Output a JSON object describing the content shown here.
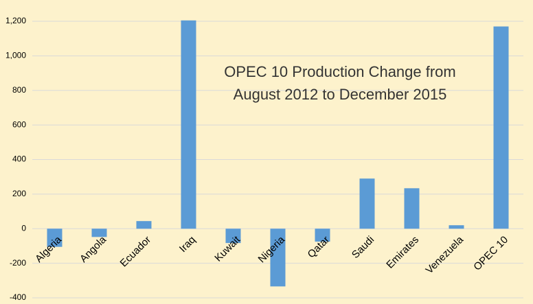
{
  "chart_data": {
    "type": "bar",
    "title": "OPEC 10 Production Change from August 2012 to December 2015",
    "categories": [
      "Algeria",
      "Angola",
      "Ecuador",
      "Iraq",
      "Kuwait",
      "Nigeria",
      "Qatar",
      "Saudi",
      "Emirates",
      "Venezuela",
      "OPEC 10"
    ],
    "values": [
      -105,
      -48,
      44,
      1205,
      -83,
      -334,
      -75,
      290,
      234,
      20,
      1170
    ],
    "color": "#5b9bd5",
    "ylim": [
      -400,
      1200
    ],
    "yticks": [
      -400,
      -200,
      0,
      200,
      400,
      600,
      800,
      1000,
      {
        "value": 1000,
        "label": "1,000"
      },
      {
        "value": 1200,
        "label": "1,200"
      }
    ],
    "grid": true
  }
}
